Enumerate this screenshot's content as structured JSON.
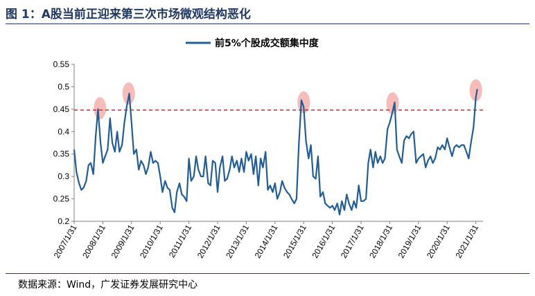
{
  "figure": {
    "title": "图 1：A股当前正迎来第三次市场微观结构恶化",
    "source": "数据来源：Wind，广发证券发展研究中心"
  },
  "chart_data": {
    "type": "line",
    "title": "",
    "xlabel": "",
    "ylabel": "",
    "ylim": [
      0.2,
      0.55
    ],
    "yticks": [
      "0.2",
      "0.25",
      "0.3",
      "0.35",
      "0.4",
      "0.45",
      "0.5",
      "0.55"
    ],
    "xticks": [
      "2007/1/31",
      "2008/1/31",
      "2009/1/31",
      "2010/1/31",
      "2011/1/31",
      "2012/1/31",
      "2013/1/31",
      "2014/1/31",
      "2015/1/31",
      "2016/1/31",
      "2017/1/31",
      "2018/1/31",
      "2019/1/31",
      "2020/1/31",
      "2021/1/31"
    ],
    "legend": {
      "position": "top-center"
    },
    "grid": false,
    "threshold": {
      "value": 0.448,
      "color": "#e02020",
      "style": "dashed"
    },
    "highlights": [
      {
        "x": 2007.9,
        "y": 0.452
      },
      {
        "x": 2008.9,
        "y": 0.485
      },
      {
        "x": 2015.0,
        "y": 0.465
      },
      {
        "x": 2018.1,
        "y": 0.463
      },
      {
        "x": 2021.0,
        "y": 0.492
      }
    ],
    "series": [
      {
        "name": "前5%个股成交额集中度",
        "color": "#1f5d99",
        "points": [
          [
            2007.0,
            0.36
          ],
          [
            2007.08,
            0.31
          ],
          [
            2007.17,
            0.285
          ],
          [
            2007.25,
            0.27
          ],
          [
            2007.33,
            0.275
          ],
          [
            2007.42,
            0.29
          ],
          [
            2007.5,
            0.325
          ],
          [
            2007.58,
            0.33
          ],
          [
            2007.67,
            0.305
          ],
          [
            2007.75,
            0.39
          ],
          [
            2007.83,
            0.45
          ],
          [
            2007.92,
            0.375
          ],
          [
            2008.0,
            0.33
          ],
          [
            2008.08,
            0.345
          ],
          [
            2008.17,
            0.36
          ],
          [
            2008.25,
            0.43
          ],
          [
            2008.33,
            0.375
          ],
          [
            2008.42,
            0.355
          ],
          [
            2008.5,
            0.4
          ],
          [
            2008.58,
            0.355
          ],
          [
            2008.67,
            0.37
          ],
          [
            2008.75,
            0.42
          ],
          [
            2008.83,
            0.455
          ],
          [
            2008.92,
            0.485
          ],
          [
            2009.0,
            0.42
          ],
          [
            2009.08,
            0.35
          ],
          [
            2009.17,
            0.36
          ],
          [
            2009.25,
            0.315
          ],
          [
            2009.33,
            0.335
          ],
          [
            2009.42,
            0.325
          ],
          [
            2009.5,
            0.305
          ],
          [
            2009.58,
            0.32
          ],
          [
            2009.67,
            0.355
          ],
          [
            2009.75,
            0.33
          ],
          [
            2009.83,
            0.335
          ],
          [
            2009.92,
            0.33
          ],
          [
            2010.0,
            0.3
          ],
          [
            2010.08,
            0.265
          ],
          [
            2010.17,
            0.29
          ],
          [
            2010.25,
            0.275
          ],
          [
            2010.33,
            0.27
          ],
          [
            2010.42,
            0.23
          ],
          [
            2010.5,
            0.22
          ],
          [
            2010.58,
            0.265
          ],
          [
            2010.67,
            0.285
          ],
          [
            2010.75,
            0.26
          ],
          [
            2010.83,
            0.255
          ],
          [
            2010.92,
            0.245
          ],
          [
            2011.0,
            0.34
          ],
          [
            2011.08,
            0.29
          ],
          [
            2011.17,
            0.3
          ],
          [
            2011.25,
            0.345
          ],
          [
            2011.33,
            0.315
          ],
          [
            2011.42,
            0.3
          ],
          [
            2011.5,
            0.3
          ],
          [
            2011.58,
            0.345
          ],
          [
            2011.67,
            0.285
          ],
          [
            2011.75,
            0.28
          ],
          [
            2011.83,
            0.335
          ],
          [
            2011.92,
            0.33
          ],
          [
            2012.0,
            0.265
          ],
          [
            2012.08,
            0.32
          ],
          [
            2012.17,
            0.345
          ],
          [
            2012.25,
            0.29
          ],
          [
            2012.33,
            0.295
          ],
          [
            2012.42,
            0.315
          ],
          [
            2012.5,
            0.345
          ],
          [
            2012.58,
            0.32
          ],
          [
            2012.67,
            0.335
          ],
          [
            2012.75,
            0.31
          ],
          [
            2012.83,
            0.34
          ],
          [
            2012.92,
            0.31
          ],
          [
            2013.0,
            0.355
          ],
          [
            2013.08,
            0.335
          ],
          [
            2013.17,
            0.35
          ],
          [
            2013.25,
            0.305
          ],
          [
            2013.33,
            0.345
          ],
          [
            2013.42,
            0.28
          ],
          [
            2013.5,
            0.34
          ],
          [
            2013.58,
            0.32
          ],
          [
            2013.67,
            0.355
          ],
          [
            2013.75,
            0.27
          ],
          [
            2013.83,
            0.28
          ],
          [
            2013.92,
            0.265
          ],
          [
            2014.0,
            0.285
          ],
          [
            2014.08,
            0.25
          ],
          [
            2014.17,
            0.265
          ],
          [
            2014.25,
            0.29
          ],
          [
            2014.33,
            0.275
          ],
          [
            2014.42,
            0.265
          ],
          [
            2014.5,
            0.26
          ],
          [
            2014.58,
            0.25
          ],
          [
            2014.67,
            0.24
          ],
          [
            2014.75,
            0.25
          ],
          [
            2014.83,
            0.37
          ],
          [
            2014.92,
            0.47
          ],
          [
            2015.0,
            0.455
          ],
          [
            2015.08,
            0.38
          ],
          [
            2015.17,
            0.34
          ],
          [
            2015.25,
            0.37
          ],
          [
            2015.33,
            0.3
          ],
          [
            2015.42,
            0.295
          ],
          [
            2015.5,
            0.345
          ],
          [
            2015.58,
            0.255
          ],
          [
            2015.67,
            0.265
          ],
          [
            2015.75,
            0.24
          ],
          [
            2015.83,
            0.235
          ],
          [
            2015.92,
            0.23
          ],
          [
            2016.0,
            0.235
          ],
          [
            2016.08,
            0.225
          ],
          [
            2016.17,
            0.24
          ],
          [
            2016.25,
            0.215
          ],
          [
            2016.33,
            0.245
          ],
          [
            2016.42,
            0.225
          ],
          [
            2016.5,
            0.26
          ],
          [
            2016.58,
            0.24
          ],
          [
            2016.67,
            0.225
          ],
          [
            2016.75,
            0.245
          ],
          [
            2016.83,
            0.23
          ],
          [
            2016.92,
            0.28
          ],
          [
            2017.0,
            0.245
          ],
          [
            2017.08,
            0.245
          ],
          [
            2017.17,
            0.25
          ],
          [
            2017.25,
            0.33
          ],
          [
            2017.33,
            0.36
          ],
          [
            2017.42,
            0.32
          ],
          [
            2017.5,
            0.355
          ],
          [
            2017.58,
            0.33
          ],
          [
            2017.67,
            0.345
          ],
          [
            2017.75,
            0.33
          ],
          [
            2017.83,
            0.34
          ],
          [
            2017.92,
            0.405
          ],
          [
            2018.0,
            0.42
          ],
          [
            2018.08,
            0.44
          ],
          [
            2018.17,
            0.465
          ],
          [
            2018.25,
            0.36
          ],
          [
            2018.33,
            0.345
          ],
          [
            2018.42,
            0.33
          ],
          [
            2018.5,
            0.38
          ],
          [
            2018.58,
            0.39
          ],
          [
            2018.67,
            0.385
          ],
          [
            2018.75,
            0.395
          ],
          [
            2018.83,
            0.4
          ],
          [
            2018.92,
            0.33
          ],
          [
            2019.0,
            0.34
          ],
          [
            2019.08,
            0.345
          ],
          [
            2019.17,
            0.35
          ],
          [
            2019.25,
            0.32
          ],
          [
            2019.33,
            0.335
          ],
          [
            2019.42,
            0.345
          ],
          [
            2019.5,
            0.33
          ],
          [
            2019.58,
            0.34
          ],
          [
            2019.67,
            0.365
          ],
          [
            2019.75,
            0.36
          ],
          [
            2019.83,
            0.37
          ],
          [
            2019.92,
            0.36
          ],
          [
            2020.0,
            0.385
          ],
          [
            2020.08,
            0.365
          ],
          [
            2020.17,
            0.345
          ],
          [
            2020.25,
            0.365
          ],
          [
            2020.33,
            0.37
          ],
          [
            2020.42,
            0.365
          ],
          [
            2020.5,
            0.37
          ],
          [
            2020.58,
            0.37
          ],
          [
            2020.67,
            0.355
          ],
          [
            2020.75,
            0.34
          ],
          [
            2020.83,
            0.375
          ],
          [
            2020.92,
            0.41
          ],
          [
            2021.0,
            0.475
          ],
          [
            2021.05,
            0.495
          ]
        ]
      }
    ]
  }
}
